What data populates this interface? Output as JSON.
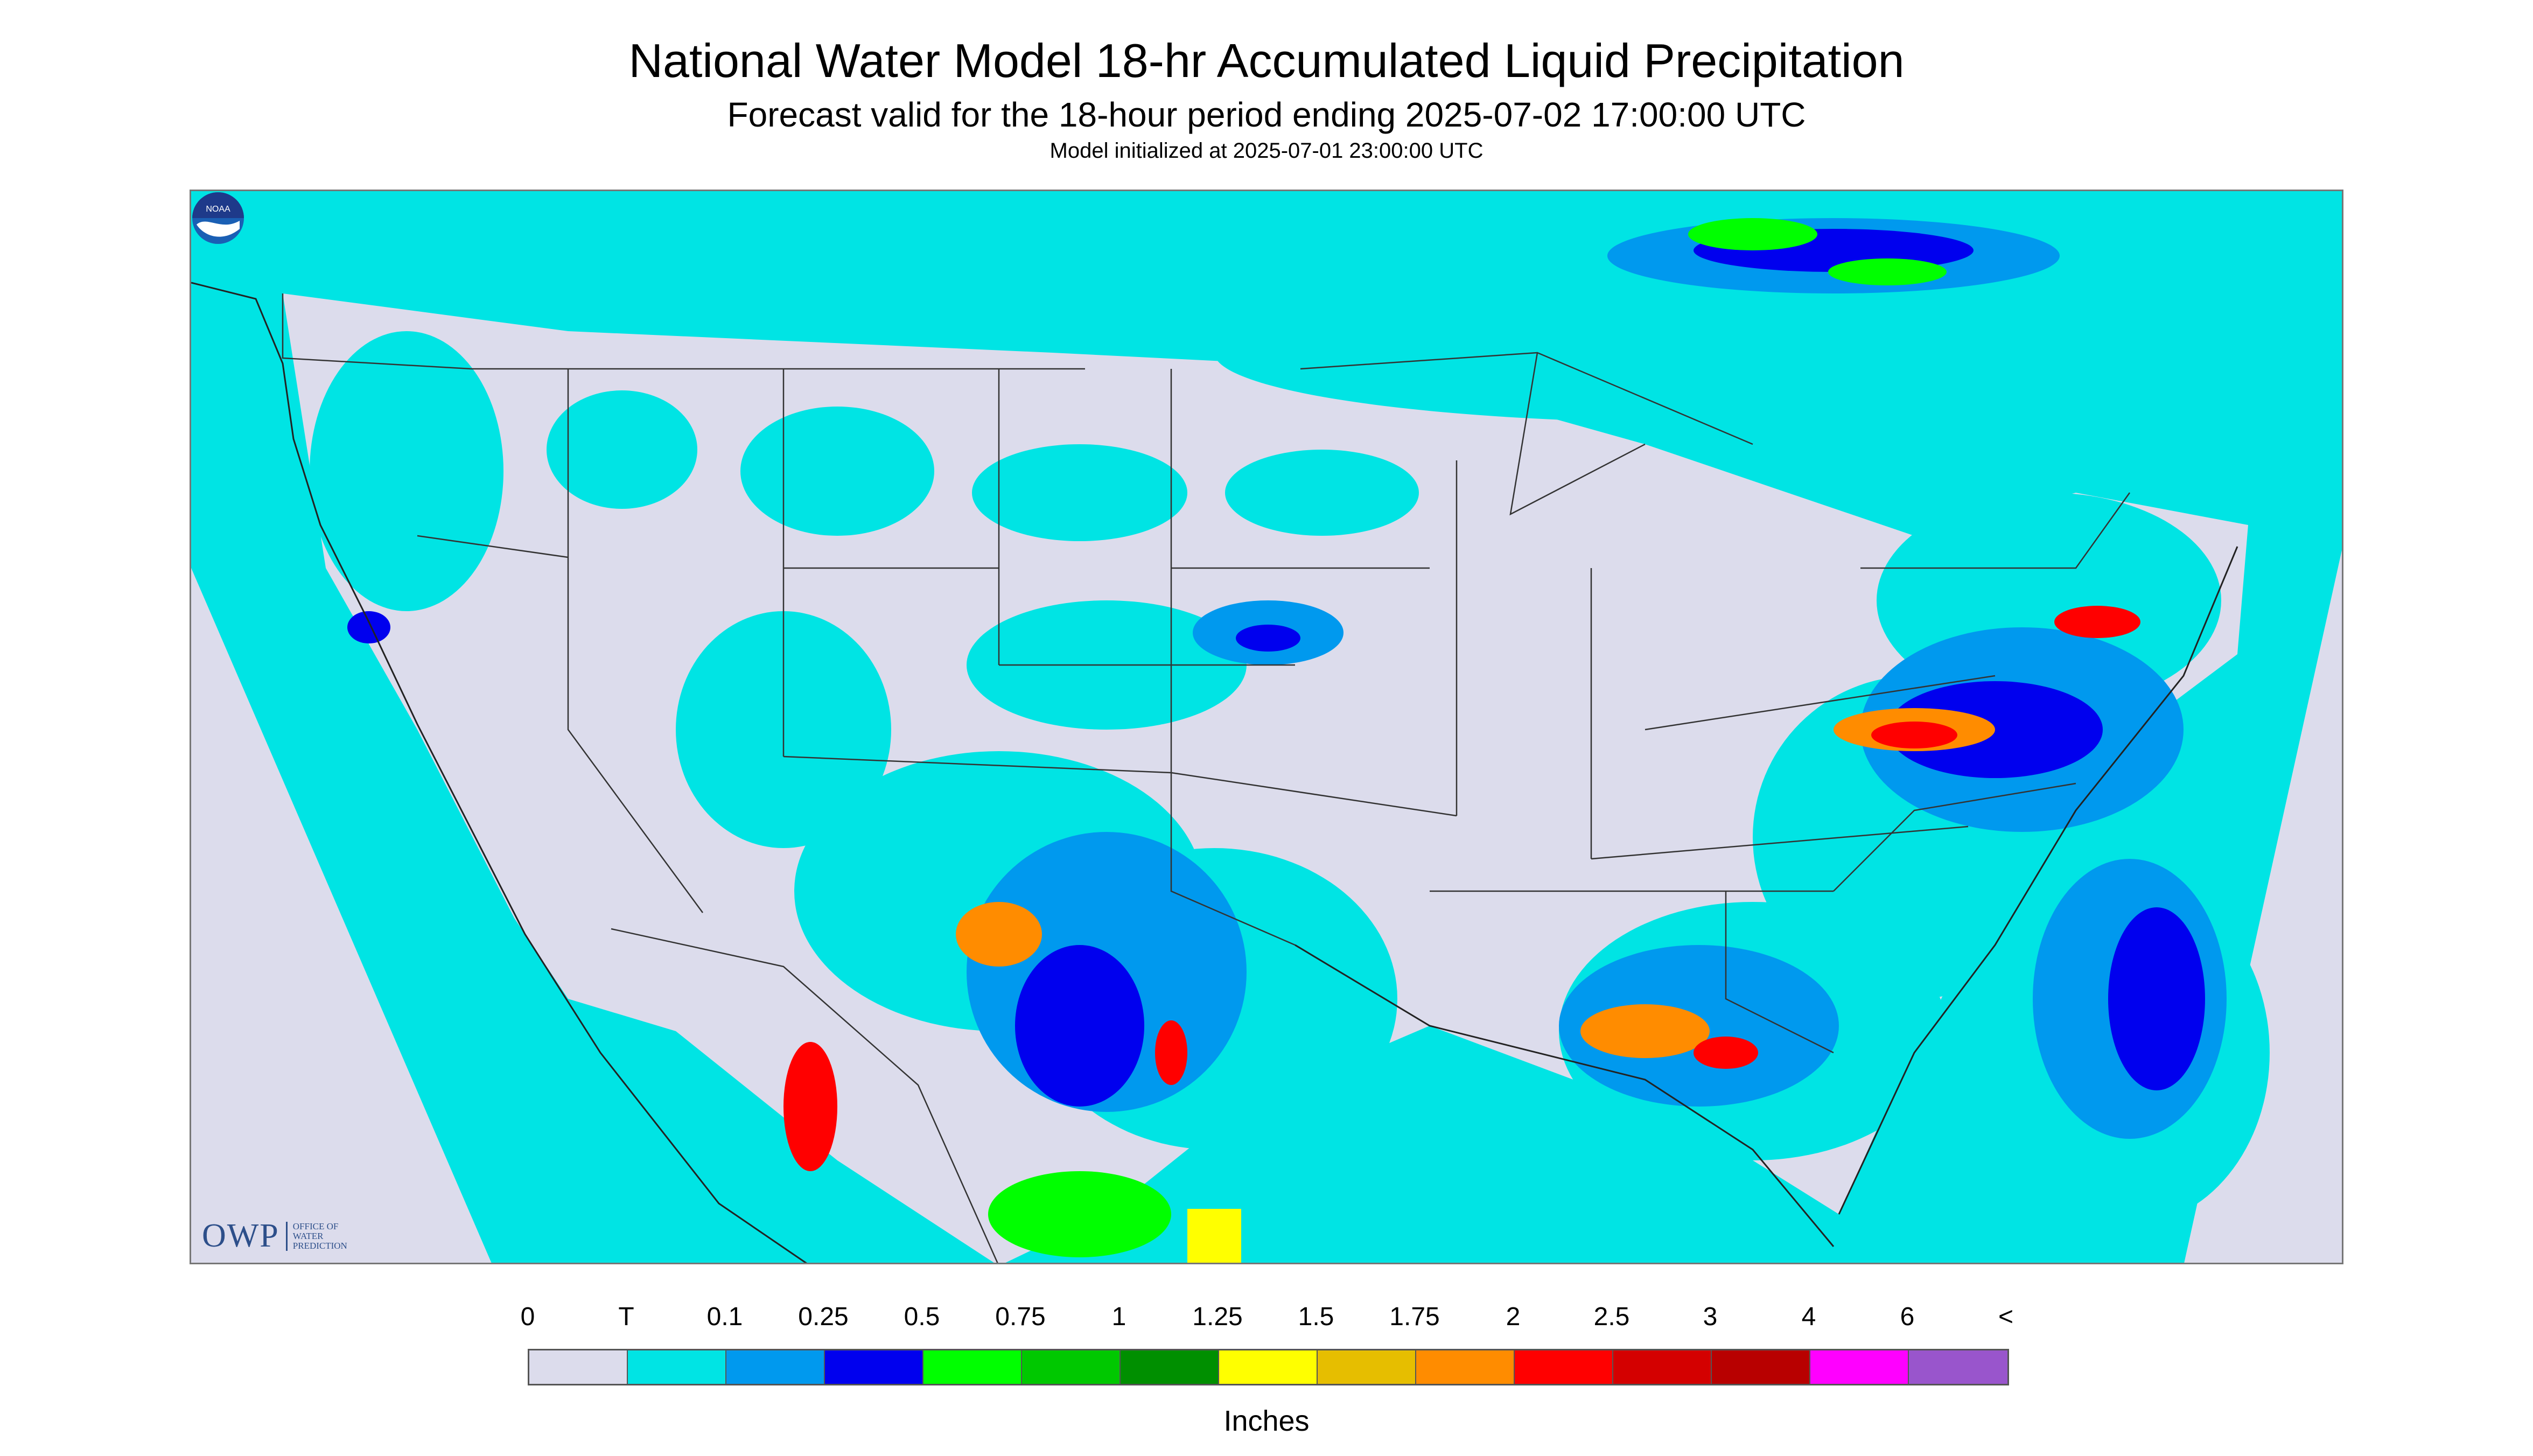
{
  "header": {
    "title": "National Water Model 18-hr Accumulated Liquid Precipitation",
    "subtitle": "Forecast valid for the 18-hour period ending 2025-07-02 17:00:00 UTC",
    "init_note": "Model initialized at 2025-07-01 23:00:00 UTC"
  },
  "logos": {
    "owp_text": "OWP",
    "owp_sub": "OFFICE OF WATER PREDICTION",
    "noaa_text": "NOAA"
  },
  "legend": {
    "labels": [
      "0",
      "T",
      "0.1",
      "0.25",
      "0.5",
      "0.75",
      "1",
      "1.25",
      "1.5",
      "1.75",
      "2",
      "2.5",
      "3",
      "4",
      "6",
      "<"
    ],
    "colors": [
      "#dcdcec",
      "#00e4e4",
      "#0099ee",
      "#0000ee",
      "#00ff00",
      "#00c800",
      "#008f00",
      "#ffff00",
      "#e6be00",
      "#ff8c00",
      "#ff0000",
      "#d40000",
      "#b80000",
      "#ff00ff",
      "#9955cc"
    ],
    "units": "Inches"
  },
  "map_colors": {
    "no_data_background": "#dcdcec",
    "trace": "#00e4e4",
    "light": "#0099ee",
    "moderate": "#0000ee",
    "green": "#00ff00",
    "heavy": "#ff0000",
    "orange": "#ff8c00",
    "yellow": "#ffff00",
    "borders": "#333333"
  }
}
